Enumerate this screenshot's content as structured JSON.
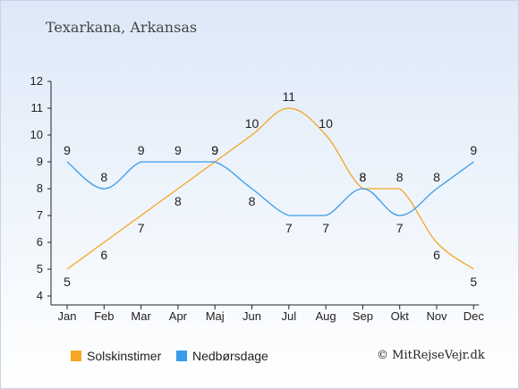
{
  "location": "Texarkana, Arkansas",
  "colors": {
    "sun": "#f5a623",
    "rain": "#3a9be8",
    "axis": "#222222"
  },
  "legend": [
    {
      "label": "Solskinstimer",
      "color": "#f5a623"
    },
    {
      "label": "Nedbørsdage",
      "color": "#3a9be8"
    }
  ],
  "copyright": "© MitRejseVejr.dk",
  "chart_data": {
    "type": "line",
    "title": "Texarkana, Arkansas",
    "categories": [
      "Jan",
      "Feb",
      "Mar",
      "Apr",
      "Maj",
      "Jun",
      "Jul",
      "Aug",
      "Sep",
      "Okt",
      "Nov",
      "Dec"
    ],
    "yticks": [
      4,
      5,
      6,
      7,
      8,
      9,
      10,
      11,
      12
    ],
    "ylim": [
      4,
      12
    ],
    "grid": false,
    "legend_position": "bottom-left",
    "series": [
      {
        "name": "Solskinstimer",
        "color": "#f5a623",
        "values": [
          5,
          6,
          7,
          8,
          9,
          10,
          11,
          10,
          8,
          8,
          6,
          5
        ]
      },
      {
        "name": "Nedbørsdage",
        "color": "#3a9be8",
        "values": [
          9,
          8,
          9,
          9,
          9,
          8,
          7,
          7,
          8,
          7,
          8,
          9
        ]
      }
    ]
  }
}
